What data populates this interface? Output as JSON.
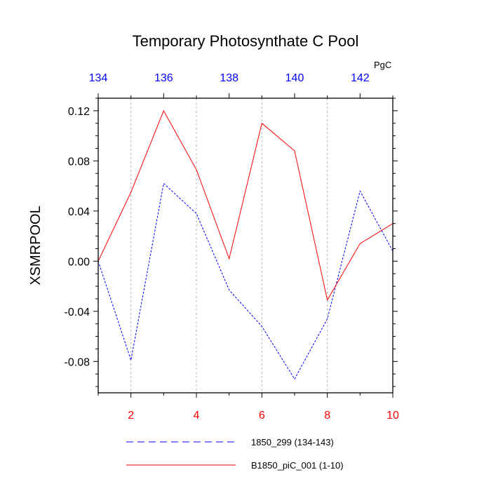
{
  "chart_data": {
    "type": "line",
    "title": "Temporary Photosynthate C Pool",
    "ylabel": "XSMRPOOL",
    "units": "PgC",
    "ylim": [
      -0.105,
      0.13
    ],
    "yticks": [
      -0.08,
      -0.04,
      0.0,
      0.04,
      0.08,
      0.12
    ],
    "ytick_labels": [
      "-0.08",
      "-0.04",
      "0.00",
      "0.04",
      "0.08",
      "0.12"
    ],
    "bottom_axis": {
      "range": [
        1,
        10
      ],
      "ticks": [
        2,
        4,
        6,
        8,
        10
      ],
      "color": "#ff0000"
    },
    "top_axis": {
      "range": [
        134,
        143
      ],
      "ticks": [
        134,
        136,
        138,
        140,
        142
      ],
      "color": "#0000ff"
    },
    "grid": "vertical dashed lines at bottom-axis ticks 2 4 6 8",
    "legend_placement": "bottom",
    "series": [
      {
        "name": "1850_299 (134-143)",
        "color": "#0000ff",
        "dash": "dashed",
        "axis": "top",
        "x": [
          134,
          135,
          136,
          137,
          138,
          139,
          140,
          141,
          142,
          143
        ],
        "values": [
          0.0,
          -0.079,
          0.062,
          0.038,
          -0.023,
          -0.052,
          -0.094,
          -0.046,
          0.056,
          0.008
        ]
      },
      {
        "name": "B1850_piC_001 (1-10)",
        "color": "#ff0000",
        "dash": "solid",
        "axis": "bottom",
        "x": [
          1,
          2,
          3,
          4,
          5,
          6,
          7,
          8,
          9,
          10
        ],
        "values": [
          0.0,
          0.055,
          0.12,
          0.073,
          0.002,
          0.11,
          0.088,
          -0.031,
          0.014,
          0.03
        ]
      }
    ]
  }
}
